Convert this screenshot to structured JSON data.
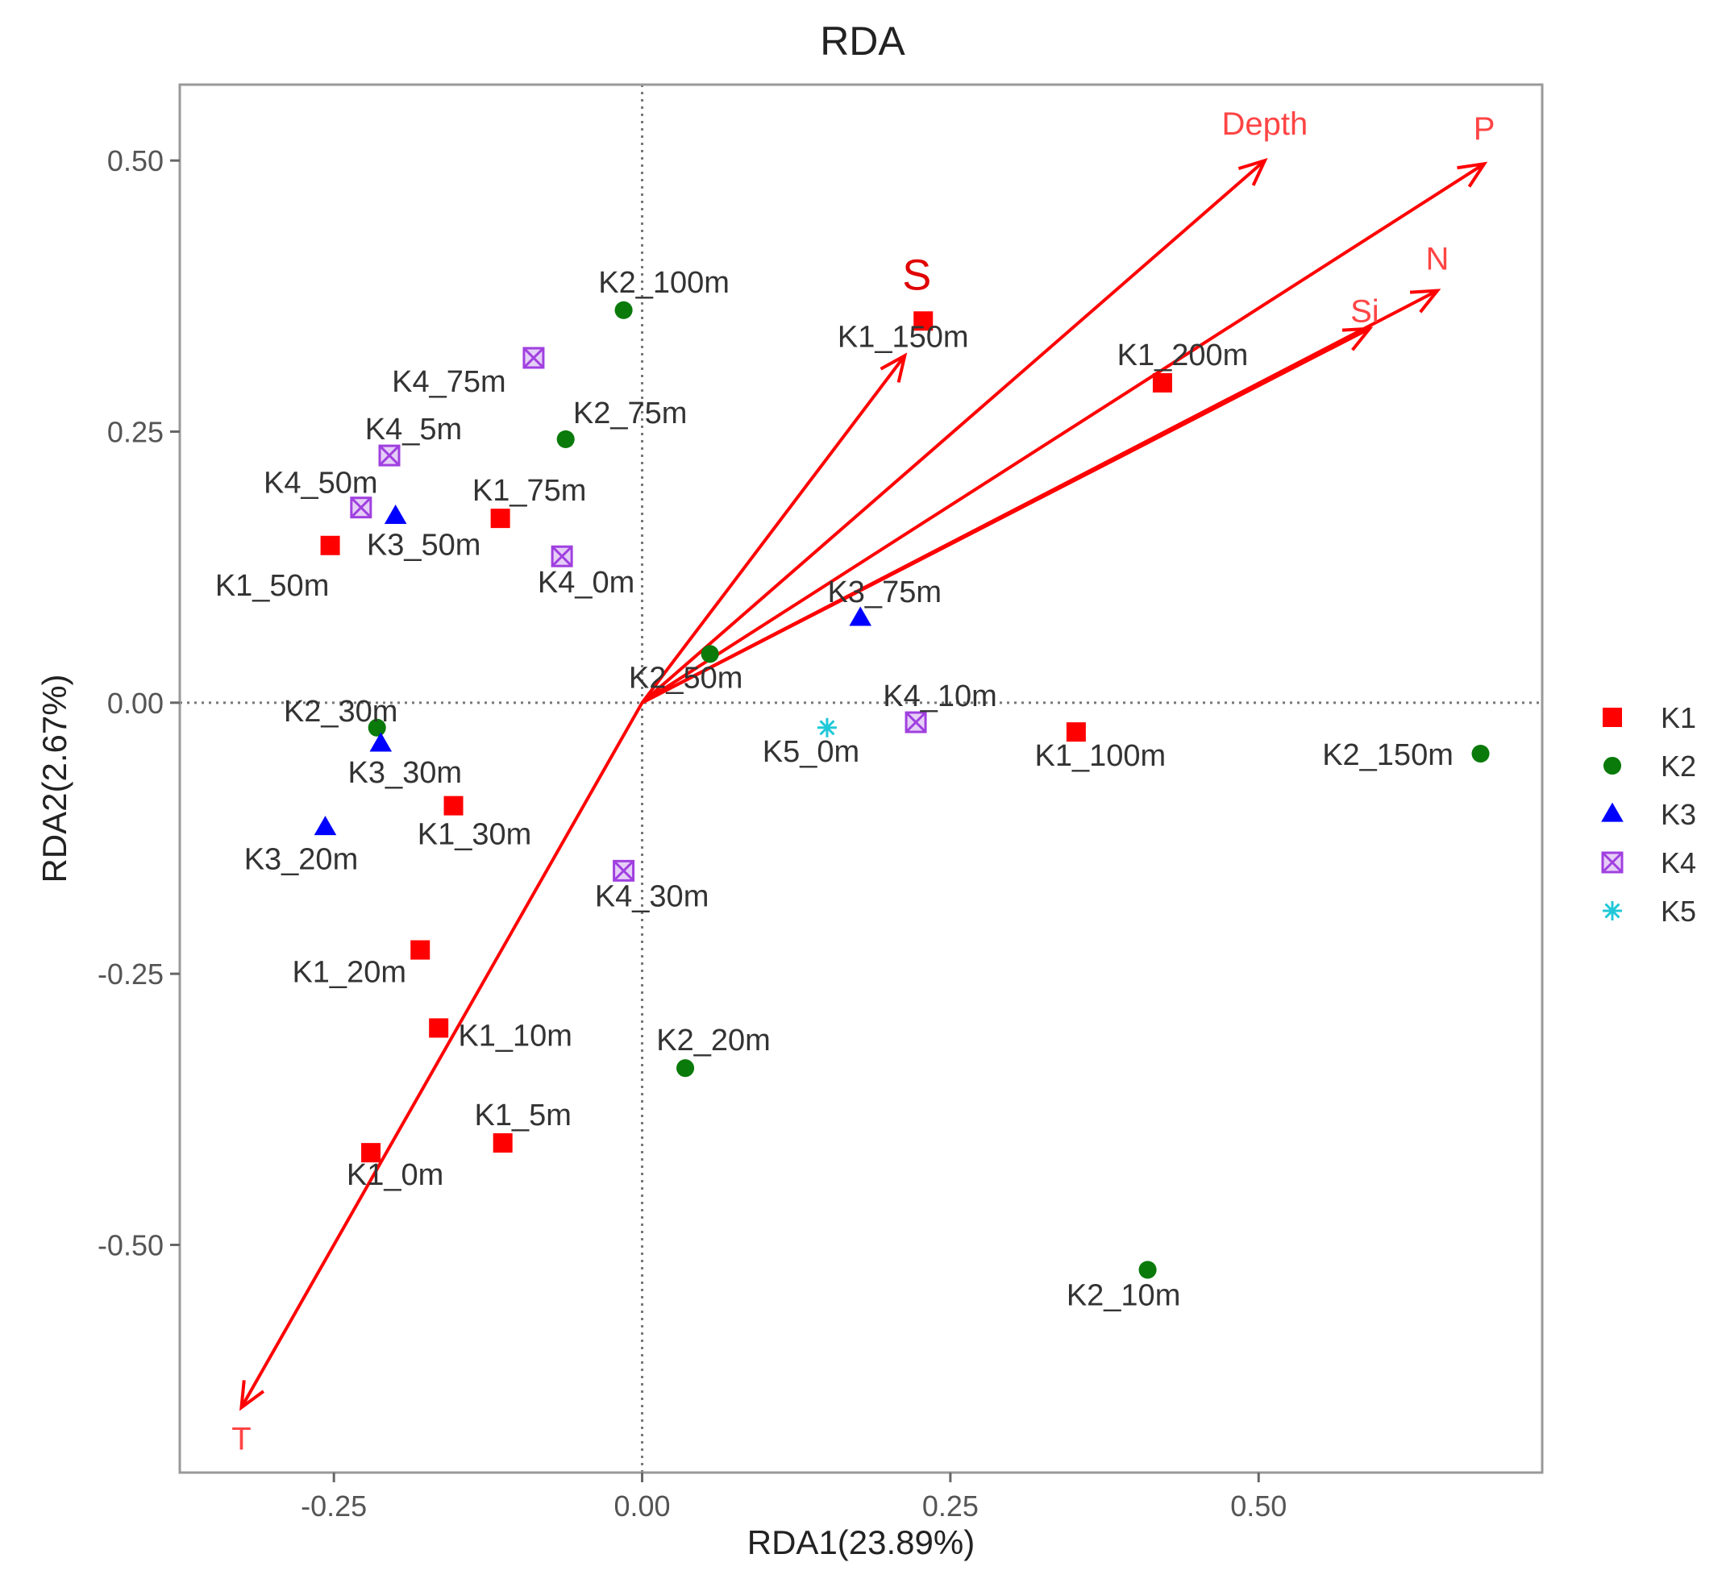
{
  "chart_data": {
    "type": "scatter",
    "title": "RDA",
    "xlabel": "RDA1(23.89%)",
    "ylabel": "RDA2(2.67%)",
    "xlim": [
      -0.375,
      0.73
    ],
    "ylim": [
      -0.71,
      0.57
    ],
    "xticks": [
      -0.25,
      0.0,
      0.25,
      0.5
    ],
    "yticks": [
      -0.5,
      -0.25,
      0.0,
      0.25,
      0.5
    ],
    "xtick_labels": [
      "-0.25",
      "0.00",
      "0.25",
      "0.50"
    ],
    "ytick_labels": [
      "-0.50",
      "-0.25",
      "0.00",
      "0.25",
      "0.50"
    ],
    "grid": false,
    "reference_lines": {
      "x": 0,
      "y": 0,
      "style": "dotted"
    },
    "legend_position": "right",
    "colors": {
      "K1": "#ff0000",
      "K2": "#0a7a0a",
      "K3": "#0000ff",
      "K4": "#a040e0",
      "K5": "#20c8d8",
      "arrow": "#ff0000",
      "env_label": "#ff4444",
      "S_label": "#e00000"
    },
    "series": [
      {
        "name": "K1",
        "shape": "square",
        "points": [
          {
            "label": "K1_0m",
            "x": -0.22,
            "y": -0.415
          },
          {
            "label": "K1_5m",
            "x": -0.113,
            "y": -0.406
          },
          {
            "label": "K1_10m",
            "x": -0.165,
            "y": -0.3
          },
          {
            "label": "K1_20m",
            "x": -0.18,
            "y": -0.228
          },
          {
            "label": "K1_30m",
            "x": -0.153,
            "y": -0.095
          },
          {
            "label": "K1_50m",
            "x": -0.253,
            "y": 0.145
          },
          {
            "label": "K1_75m",
            "x": -0.115,
            "y": 0.17
          },
          {
            "label": "K1_100m",
            "x": 0.352,
            "y": -0.027
          },
          {
            "label": "K1_150m",
            "x": 0.228,
            "y": 0.352
          },
          {
            "label": "K1_200m",
            "x": 0.422,
            "y": 0.295
          }
        ]
      },
      {
        "name": "K2",
        "shape": "circle",
        "points": [
          {
            "label": "K2_10m",
            "x": 0.41,
            "y": -0.523
          },
          {
            "label": "K2_20m",
            "x": 0.035,
            "y": -0.337
          },
          {
            "label": "K2_30m",
            "x": -0.215,
            "y": -0.023
          },
          {
            "label": "K2_50m",
            "x": 0.055,
            "y": 0.045
          },
          {
            "label": "K2_75m",
            "x": -0.062,
            "y": 0.243
          },
          {
            "label": "K2_100m",
            "x": -0.015,
            "y": 0.362
          },
          {
            "label": "K2_150m",
            "x": 0.68,
            "y": -0.047
          }
        ]
      },
      {
        "name": "K3",
        "shape": "triangle",
        "points": [
          {
            "label": "K3_20m",
            "x": -0.257,
            "y": -0.115
          },
          {
            "label": "K3_30m",
            "x": -0.212,
            "y": -0.038
          },
          {
            "label": "K3_50m",
            "x": -0.2,
            "y": 0.172
          },
          {
            "label": "K3_75m",
            "x": 0.177,
            "y": 0.078
          }
        ]
      },
      {
        "name": "K4",
        "shape": "boxed-x",
        "points": [
          {
            "label": "K4_0m",
            "x": -0.065,
            "y": 0.135
          },
          {
            "label": "K4_5m",
            "x": -0.205,
            "y": 0.228
          },
          {
            "label": "K4_10m",
            "x": 0.222,
            "y": -0.018
          },
          {
            "label": "K4_30m",
            "x": -0.015,
            "y": -0.155
          },
          {
            "label": "K4_50m",
            "x": -0.228,
            "y": 0.18
          },
          {
            "label": "K4_75m",
            "x": -0.088,
            "y": 0.318
          }
        ]
      },
      {
        "name": "K5",
        "shape": "star",
        "points": [
          {
            "label": "K5_0m",
            "x": 0.15,
            "y": -0.023
          }
        ]
      }
    ],
    "vectors": [
      {
        "name": "Depth",
        "x": 0.505,
        "y": 0.5
      },
      {
        "name": "P",
        "x": 0.683,
        "y": 0.497
      },
      {
        "name": "N",
        "x": 0.645,
        "y": 0.38
      },
      {
        "name": "Si",
        "x": 0.59,
        "y": 0.345
      },
      {
        "name": "S",
        "x": 0.213,
        "y": 0.32
      },
      {
        "name": "T",
        "x": -0.325,
        "y": -0.65
      }
    ]
  }
}
